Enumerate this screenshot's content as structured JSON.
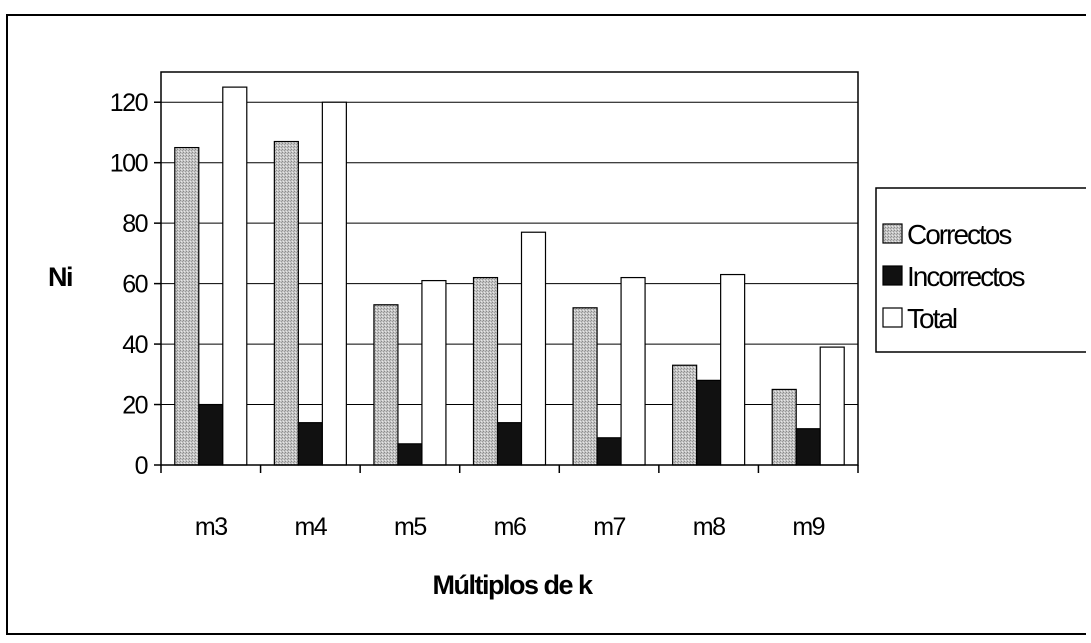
{
  "chart_data": {
    "type": "bar",
    "title": "",
    "xlabel": "Múltiplos de k",
    "ylabel": "Ni",
    "categories": [
      "m3",
      "m4",
      "m5",
      "m6",
      "m7",
      "m8",
      "m9"
    ],
    "series": [
      {
        "name": "Correctos",
        "values": [
          105,
          107,
          53,
          62,
          52,
          33,
          25
        ]
      },
      {
        "name": "Incorrectos",
        "values": [
          20,
          14,
          7,
          14,
          9,
          28,
          12
        ]
      },
      {
        "name": "Total",
        "values": [
          125,
          120,
          61,
          77,
          62,
          63,
          39
        ]
      }
    ],
    "ylim": [
      0,
      130
    ],
    "yticks": [
      "0",
      "20",
      "40",
      "60",
      "80",
      "100",
      "120"
    ],
    "grid": true,
    "legend_position": "right",
    "colors": {
      "Correctos": "#b8b8b8",
      "Incorrectos": "#111111",
      "Total": "#ffffff"
    }
  }
}
